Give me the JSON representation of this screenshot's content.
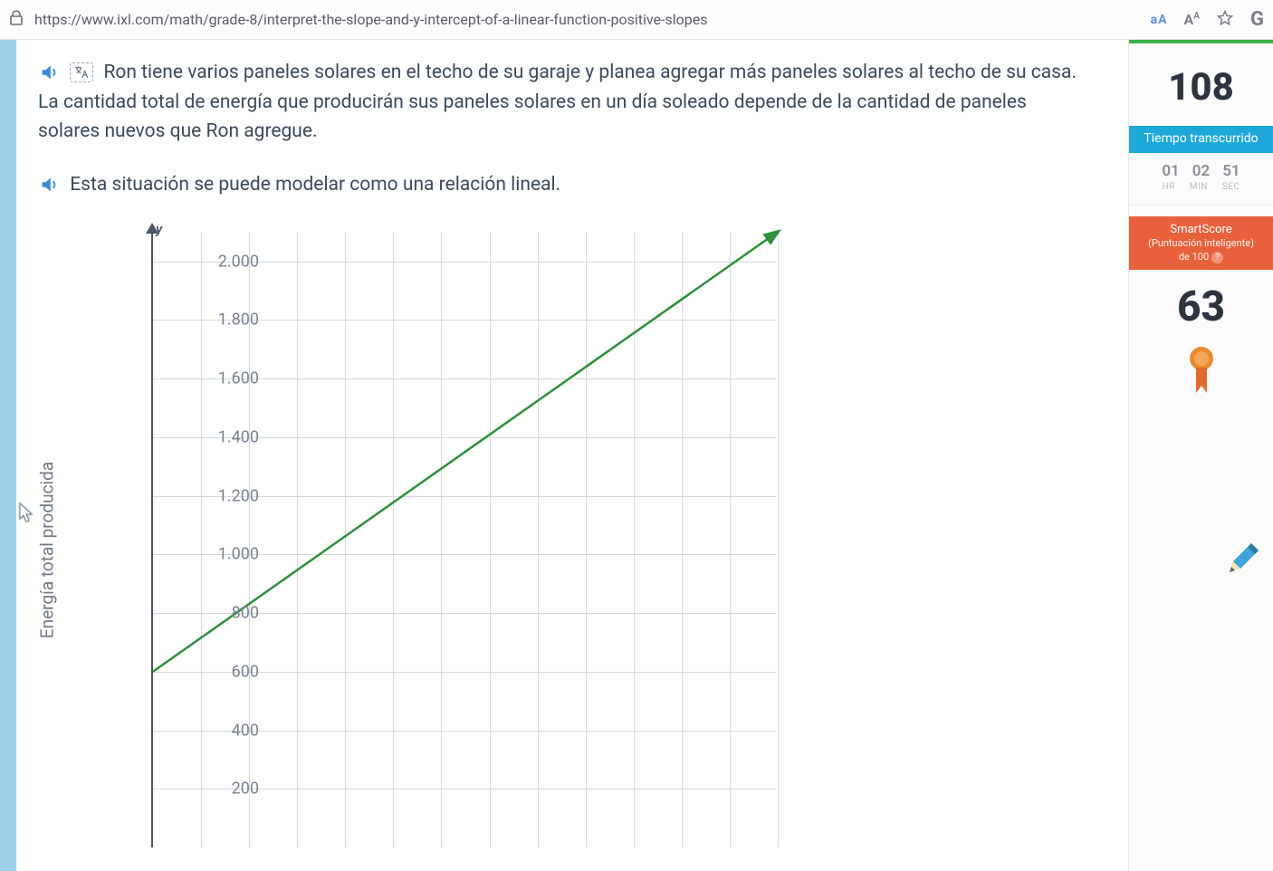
{
  "browser": {
    "url": "https://www.ixl.com/math/grade-8/interpret-the-slope-and-y-intercept-of-a-linear-function-positive-slopes",
    "read_aloud_label": "aA"
  },
  "problem": {
    "paragraph1": "Ron tiene varios paneles solares en el techo de su garaje y planea agregar más paneles solares al techo de su casa. La cantidad total de energía que producirán sus paneles solares en un día soleado depende de la cantidad de paneles solares nuevos que Ron agregue.",
    "paragraph2": "Esta situación se puede modelar como una relación lineal."
  },
  "chart": {
    "type": "line",
    "y_axis_label": "Energía total producida",
    "y_axis_letter": "y",
    "ylim": [
      0,
      2100
    ],
    "y_ticks": [
      200,
      400,
      600,
      800,
      1000,
      1200,
      1400,
      1600,
      1800,
      2000
    ],
    "y_tick_labels": [
      "200",
      "400",
      "600",
      "800",
      "1.000",
      "1.200",
      "1.400",
      "1.600",
      "1.800",
      "2.000"
    ],
    "ytick_step": 200,
    "x_grid_count": 13,
    "line_points": [
      [
        0,
        600
      ],
      [
        13,
        2100
      ]
    ],
    "line_color": "#2f8f3a",
    "line_width": 2.5,
    "grid_color": "#d4d8de",
    "axis_color": "#4a5568",
    "background_color": "#ffffff",
    "label_color": "#7a8290",
    "tick_fontsize": 18,
    "axis_label_fontsize": 19
  },
  "sidebar": {
    "questions_answered": "108",
    "time_header": "Tiempo transcurrido",
    "time": {
      "hr": "01",
      "min": "02",
      "sec": "51"
    },
    "time_units": {
      "hr": "HR",
      "min": "MIN",
      "sec": "SEC"
    },
    "smartscore_title": "SmartScore",
    "smartscore_sub": "(Puntuación inteligente)",
    "smartscore_of": "de 100",
    "score": "63"
  },
  "colors": {
    "accent_blue": "#1ea8d8",
    "accent_orange": "#e8613c",
    "text_dark": "#2e3340",
    "ribbon": "#e98b2e"
  }
}
